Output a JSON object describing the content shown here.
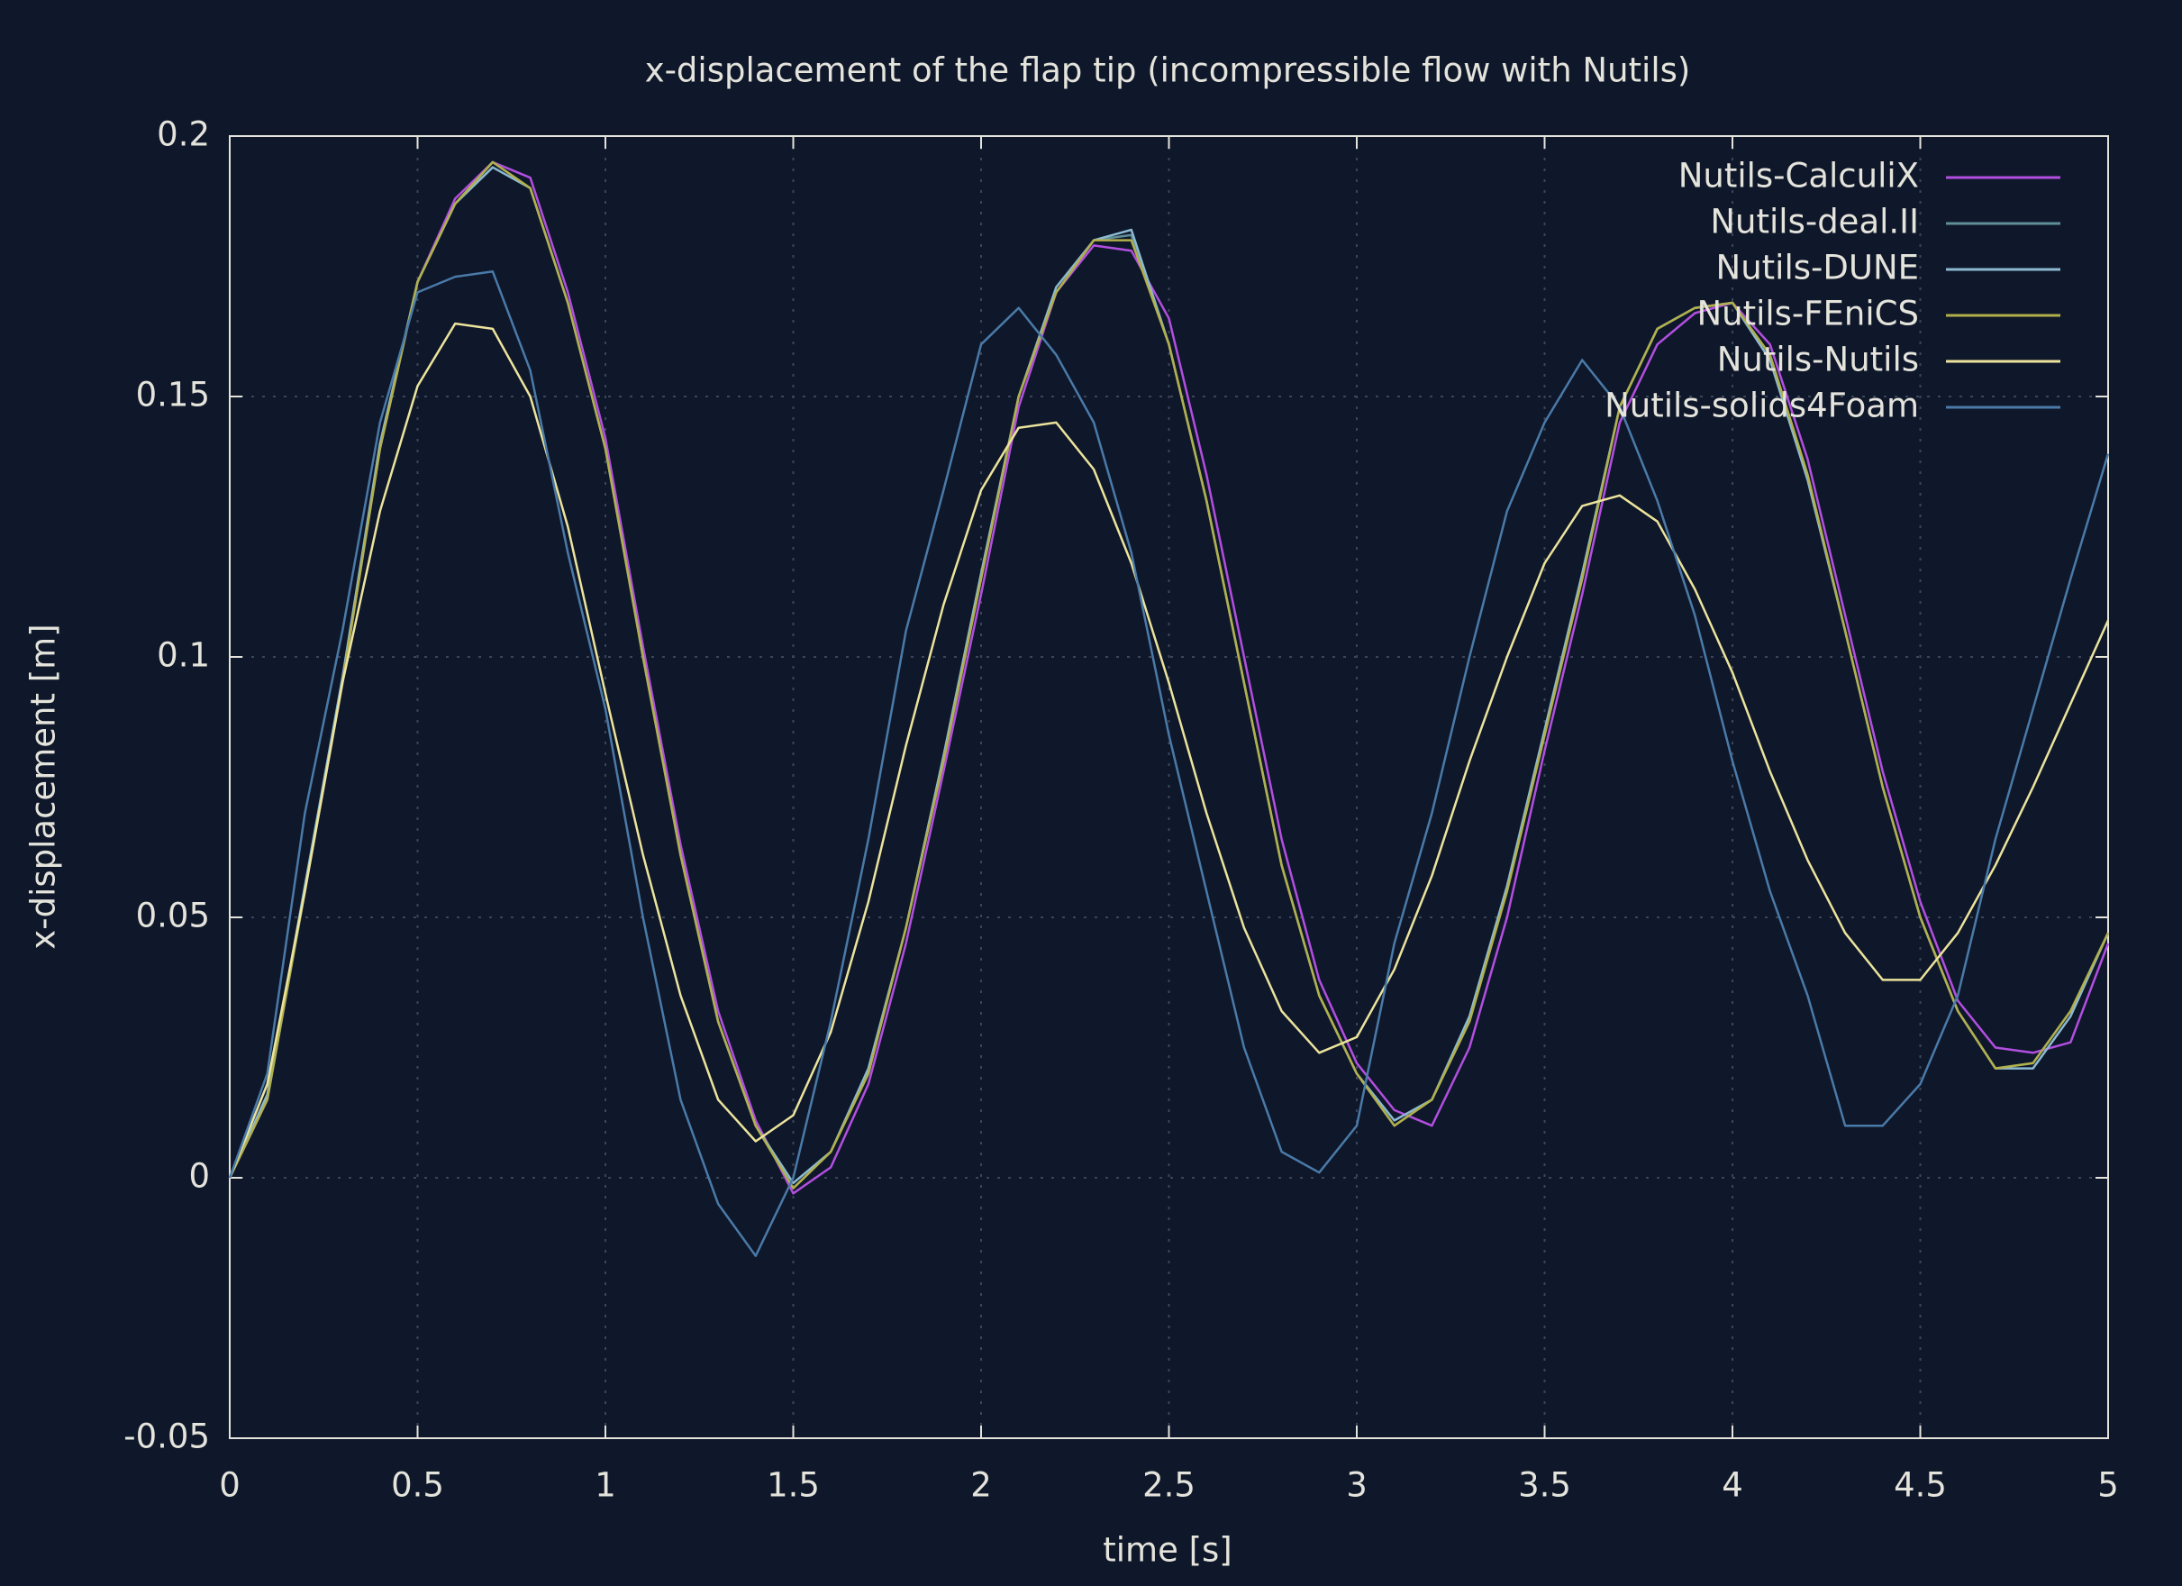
{
  "chart_data": {
    "type": "line",
    "title": "x-displacement of the flap tip (incompressible flow with Nutils)",
    "x_label": "time [s]",
    "y_label": "x-displacement [m]",
    "x": [
      0,
      0.1,
      0.2,
      0.3,
      0.4,
      0.5,
      0.6,
      0.7,
      0.8,
      0.9,
      1,
      1.1,
      1.2,
      1.3,
      1.4,
      1.5,
      1.6,
      1.7,
      1.8,
      1.9,
      2,
      2.1,
      2.2,
      2.3,
      2.4,
      2.5,
      2.6,
      2.7,
      2.8,
      2.9,
      3,
      3.1,
      3.2,
      3.3,
      3.4,
      3.5,
      3.6,
      3.7,
      3.8,
      3.9,
      4,
      4.1,
      4.2,
      4.3,
      4.4,
      4.5,
      4.6,
      4.7,
      4.8,
      4.9,
      5
    ],
    "xlim": [
      0,
      5
    ],
    "xticks": [
      0,
      0.5,
      1,
      1.5,
      2,
      2.5,
      3,
      3.5,
      4,
      4.5,
      5
    ],
    "ylim": [
      -0.05,
      0.2
    ],
    "yticks": [
      -0.05,
      0,
      0.05,
      0.1,
      0.15,
      0.2
    ],
    "grid": true,
    "legend": "top-right",
    "series": [
      {
        "name": "Nutils-CalculiX",
        "color": "#b24fe0",
        "values": [
          0,
          0.015,
          0.055,
          0.095,
          0.14,
          0.172,
          0.188,
          0.195,
          0.192,
          0.17,
          0.142,
          0.102,
          0.064,
          0.032,
          0.011,
          -0.003,
          0.002,
          0.018,
          0.045,
          0.078,
          0.112,
          0.148,
          0.17,
          0.179,
          0.178,
          0.165,
          0.135,
          0.1,
          0.065,
          0.038,
          0.022,
          0.013,
          0.01,
          0.025,
          0.05,
          0.082,
          0.112,
          0.145,
          0.16,
          0.166,
          0.168,
          0.16,
          0.138,
          0.108,
          0.078,
          0.053,
          0.034,
          0.025,
          0.024,
          0.026,
          0.045
        ]
      },
      {
        "name": "Nutils-deal.II",
        "color": "#5f8f98",
        "values": [
          0,
          0.015,
          0.055,
          0.095,
          0.14,
          0.172,
          0.187,
          0.195,
          0.19,
          0.168,
          0.14,
          0.1,
          0.062,
          0.03,
          0.01,
          -0.002,
          0.005,
          0.02,
          0.048,
          0.08,
          0.115,
          0.15,
          0.17,
          0.18,
          0.181,
          0.16,
          0.13,
          0.095,
          0.06,
          0.035,
          0.02,
          0.01,
          0.015,
          0.03,
          0.055,
          0.085,
          0.115,
          0.148,
          0.163,
          0.167,
          0.168,
          0.158,
          0.135,
          0.105,
          0.075,
          0.05,
          0.032,
          0.021,
          0.022,
          0.032,
          0.047
        ]
      },
      {
        "name": "Nutils-DUNE",
        "color": "#8cbad2",
        "values": [
          0,
          0.016,
          0.056,
          0.096,
          0.141,
          0.172,
          0.187,
          0.194,
          0.19,
          0.168,
          0.14,
          0.1,
          0.062,
          0.03,
          0.01,
          -0.001,
          0.005,
          0.021,
          0.048,
          0.081,
          0.116,
          0.15,
          0.171,
          0.18,
          0.182,
          0.16,
          0.13,
          0.095,
          0.06,
          0.035,
          0.02,
          0.011,
          0.015,
          0.031,
          0.056,
          0.086,
          0.116,
          0.148,
          0.163,
          0.167,
          0.168,
          0.157,
          0.134,
          0.105,
          0.075,
          0.05,
          0.032,
          0.021,
          0.021,
          0.031,
          0.047
        ]
      },
      {
        "name": "Nutils-FEniCS",
        "color": "#b2b04a",
        "values": [
          0,
          0.015,
          0.055,
          0.095,
          0.14,
          0.172,
          0.187,
          0.195,
          0.19,
          0.168,
          0.14,
          0.1,
          0.062,
          0.03,
          0.01,
          -0.002,
          0.005,
          0.02,
          0.048,
          0.08,
          0.115,
          0.15,
          0.17,
          0.18,
          0.18,
          0.16,
          0.13,
          0.095,
          0.06,
          0.035,
          0.02,
          0.01,
          0.015,
          0.03,
          0.055,
          0.085,
          0.115,
          0.148,
          0.163,
          0.167,
          0.168,
          0.158,
          0.135,
          0.105,
          0.075,
          0.05,
          0.032,
          0.021,
          0.022,
          0.032,
          0.047
        ]
      },
      {
        "name": "Nutils-Nutils",
        "color": "#ece49c",
        "values": [
          0,
          0.018,
          0.055,
          0.095,
          0.128,
          0.152,
          0.164,
          0.163,
          0.15,
          0.125,
          0.093,
          0.062,
          0.035,
          0.015,
          0.007,
          0.012,
          0.028,
          0.053,
          0.083,
          0.11,
          0.132,
          0.144,
          0.145,
          0.136,
          0.118,
          0.095,
          0.07,
          0.048,
          0.032,
          0.024,
          0.027,
          0.04,
          0.058,
          0.08,
          0.1,
          0.118,
          0.129,
          0.131,
          0.126,
          0.113,
          0.097,
          0.078,
          0.061,
          0.047,
          0.038,
          0.038,
          0.047,
          0.06,
          0.075,
          0.091,
          0.107
        ]
      },
      {
        "name": "Nutils-solids4Foam",
        "color": "#4a7aa8",
        "values": [
          0,
          0.02,
          0.07,
          0.105,
          0.145,
          0.17,
          0.173,
          0.174,
          0.155,
          0.12,
          0.09,
          0.05,
          0.015,
          -0.005,
          -0.015,
          0,
          0.03,
          0.065,
          0.105,
          0.132,
          0.16,
          0.167,
          0.158,
          0.145,
          0.12,
          0.085,
          0.055,
          0.025,
          0.005,
          0.001,
          0.01,
          0.045,
          0.07,
          0.1,
          0.128,
          0.145,
          0.157,
          0.148,
          0.13,
          0.108,
          0.08,
          0.055,
          0.035,
          0.01,
          0.01,
          0.018,
          0.035,
          0.065,
          0.09,
          0.115,
          0.139
        ]
      }
    ]
  }
}
